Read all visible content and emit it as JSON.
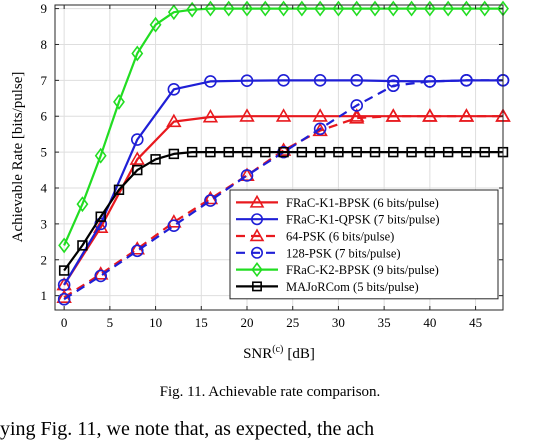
{
  "chart_data": {
    "type": "line",
    "xlabel": "SNR",
    "xlabel_sup": "(c)",
    "xlabel_unit": "[dB]",
    "ylabel": "Achievable Rate [bits/pulse]",
    "xlim": [
      -1,
      48
    ],
    "ylim": [
      0.6,
      9.1
    ],
    "xticks": [
      0,
      5,
      10,
      15,
      20,
      25,
      30,
      35,
      40,
      45
    ],
    "yticks": [
      1,
      2,
      3,
      4,
      5,
      6,
      7,
      8,
      9
    ],
    "grid": true,
    "legend_position": "bottom-right",
    "series": [
      {
        "name": "FRaC-K1-BPSK (6 bits/pulse)",
        "color": "#e8191e",
        "dash": "solid",
        "marker": "triangle",
        "x": [
          0,
          4,
          8,
          12,
          16,
          20,
          24,
          28,
          32,
          36,
          40,
          44,
          48
        ],
        "y": [
          1.3,
          2.9,
          4.8,
          5.85,
          5.98,
          6.0,
          6.0,
          6.0,
          6.0,
          6.0,
          6.0,
          6.0,
          6.0
        ]
      },
      {
        "name": "FRaC-K1-QPSK (7 bits/pulse)",
        "color": "#1f1fd6",
        "dash": "solid",
        "marker": "circle",
        "x": [
          0,
          4,
          8,
          12,
          16,
          20,
          24,
          28,
          32,
          36,
          40,
          44,
          48
        ],
        "y": [
          1.3,
          3.0,
          5.35,
          6.75,
          6.97,
          6.99,
          7.0,
          7.0,
          7.0,
          6.98,
          6.97,
          7.0,
          7.0
        ]
      },
      {
        "name": "64-PSK (6 bits/pulse)",
        "color": "#e8191e",
        "dash": "dashed",
        "marker": "triangle",
        "x": [
          0,
          4,
          8,
          12,
          16,
          20,
          24,
          28,
          32,
          36,
          40,
          44,
          48
        ],
        "y": [
          0.95,
          1.6,
          2.3,
          3.05,
          3.7,
          4.35,
          5.05,
          5.6,
          5.95,
          6.0,
          6.0,
          6.0,
          6.0
        ]
      },
      {
        "name": "128-PSK (7 bits/pulse)",
        "color": "#1f1fd6",
        "dash": "dashed",
        "marker": "circle",
        "x": [
          0,
          4,
          8,
          12,
          16,
          20,
          24,
          28,
          32,
          36,
          40,
          44,
          48
        ],
        "y": [
          0.9,
          1.55,
          2.25,
          2.95,
          3.65,
          4.35,
          5.0,
          5.65,
          6.3,
          6.85,
          6.97,
          7.0,
          7.0
        ]
      },
      {
        "name": "FRaC-K2-BPSK (9 bits/pulse)",
        "color": "#22dd22",
        "dash": "solid",
        "marker": "diamond",
        "x": [
          0,
          2,
          4,
          6,
          8,
          10,
          12,
          14,
          16,
          18,
          20,
          22,
          24,
          26,
          28,
          30,
          32,
          34,
          36,
          38,
          40,
          42,
          44,
          46,
          48
        ],
        "y": [
          2.4,
          3.55,
          4.9,
          6.4,
          7.75,
          8.55,
          8.9,
          8.97,
          9.0,
          9.0,
          9.0,
          9.0,
          9.0,
          9.0,
          9.0,
          9.0,
          9.0,
          9.0,
          9.0,
          9.0,
          9.0,
          9.0,
          9.0,
          9.0,
          9.0
        ]
      },
      {
        "name": "MAJoRCom (5 bits/pulse)",
        "color": "#000000",
        "dash": "solid",
        "marker": "square",
        "x": [
          0,
          2,
          4,
          6,
          8,
          10,
          12,
          14,
          16,
          18,
          20,
          22,
          24,
          26,
          28,
          30,
          32,
          34,
          36,
          38,
          40,
          42,
          44,
          46,
          48
        ],
        "y": [
          1.7,
          2.4,
          3.2,
          3.95,
          4.5,
          4.8,
          4.95,
          5.0,
          5.0,
          5.0,
          5.0,
          5.0,
          5.0,
          5.0,
          5.0,
          5.0,
          5.0,
          5.0,
          5.0,
          5.0,
          5.0,
          5.0,
          5.0,
          5.0,
          5.0
        ]
      }
    ]
  },
  "caption": "Fig. 11.   Achievable rate comparison.",
  "body_text": "ying Fig. 11, we note that, as expected, the ach"
}
